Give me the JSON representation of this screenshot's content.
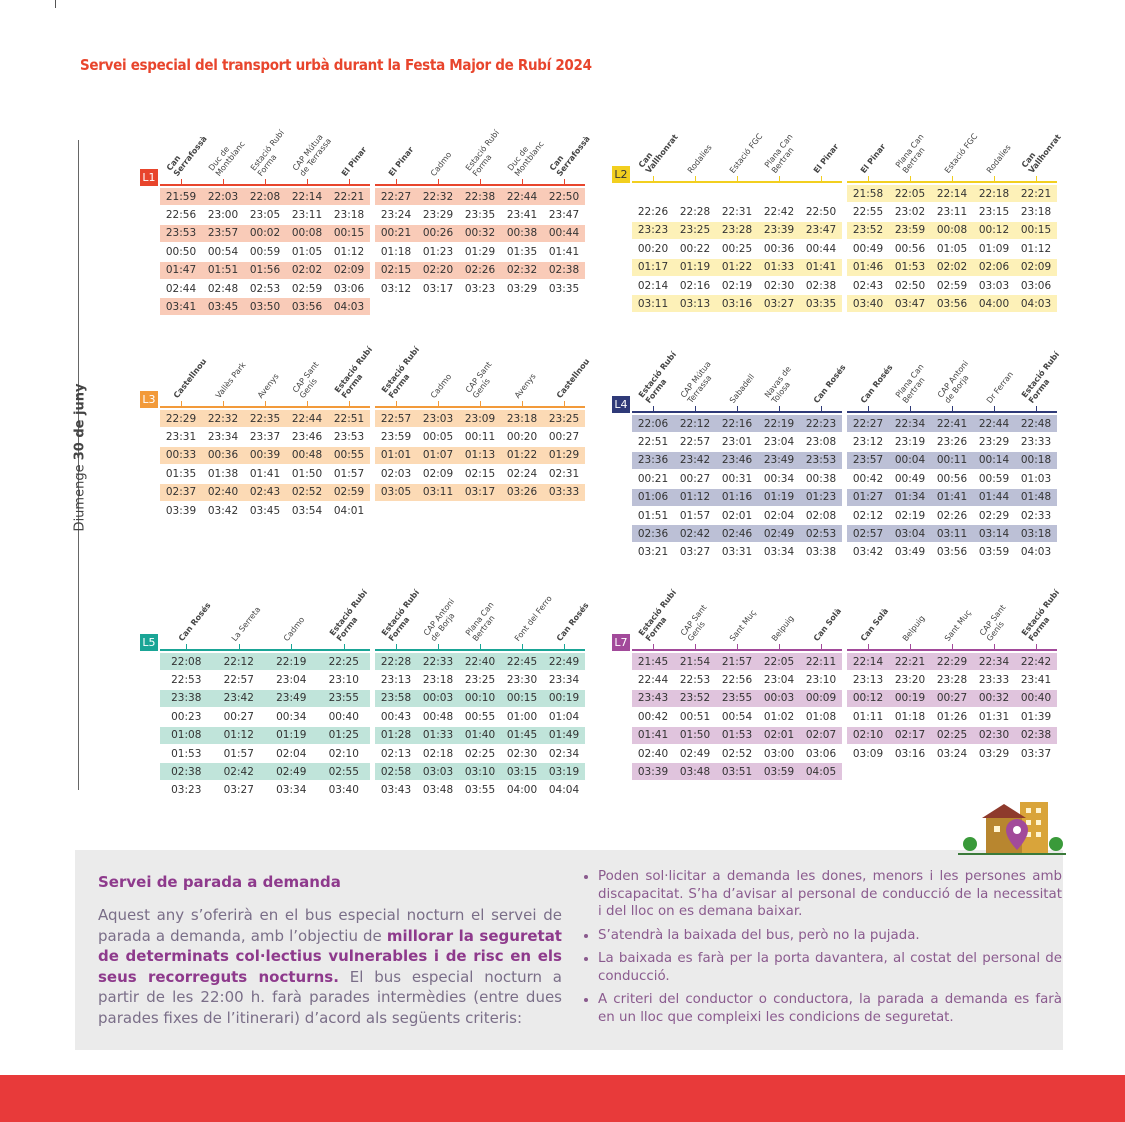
{
  "title": "Servei especial del transport urbà durant la Festa Major de Rubí 2024",
  "side_label": {
    "day": "Diumenge",
    "date": "30 de juny"
  },
  "lines": [
    {
      "name": "L1",
      "color": "#e8452c",
      "tint": "#f9cbb8",
      "directions": [
        {
          "stops": [
            "Can Serrafossà",
            "Duc de Montblanc",
            "Estació Rubí Forma",
            "CAP Mútua de Terrassa",
            "El Pinar"
          ],
          "rows": [
            [
              "21:59",
              "22:03",
              "22:08",
              "22:14",
              "22:21"
            ],
            [
              "22:56",
              "23:00",
              "23:05",
              "23:11",
              "23:18"
            ],
            [
              "23:53",
              "23:57",
              "00:02",
              "00:08",
              "00:15"
            ],
            [
              "00:50",
              "00:54",
              "00:59",
              "01:05",
              "01:12"
            ],
            [
              "01:47",
              "01:51",
              "01:56",
              "02:02",
              "02:09"
            ],
            [
              "02:44",
              "02:48",
              "02:53",
              "02:59",
              "03:06"
            ],
            [
              "03:41",
              "03:45",
              "03:50",
              "03:56",
              "04:03"
            ]
          ]
        },
        {
          "stops": [
            "El Pinar",
            "Cadmo",
            "Estació Rubí Forma",
            "Duc de Montblanc",
            "Can Serrafossà"
          ],
          "rows": [
            [
              "22:27",
              "22:32",
              "22:38",
              "22:44",
              "22:50"
            ],
            [
              "23:24",
              "23:29",
              "23:35",
              "23:41",
              "23:47"
            ],
            [
              "00:21",
              "00:26",
              "00:32",
              "00:38",
              "00:44"
            ],
            [
              "01:18",
              "01:23",
              "01:29",
              "01:35",
              "01:41"
            ],
            [
              "02:15",
              "02:20",
              "02:26",
              "02:32",
              "02:38"
            ],
            [
              "03:12",
              "03:17",
              "03:23",
              "03:29",
              "03:35"
            ]
          ]
        }
      ]
    },
    {
      "name": "L2",
      "color": "#f2cf1f",
      "tint": "#fdf1b8",
      "directions": [
        {
          "stops": [
            "Can Vallhonrat",
            "Rodalies",
            "Estació FGC",
            "Plana Can Bertran",
            "El Pinar"
          ],
          "rows": [
            [
              "22:26",
              "22:28",
              "22:31",
              "22:42",
              "22:50"
            ],
            [
              "23:23",
              "23:25",
              "23:28",
              "23:39",
              "23:47"
            ],
            [
              "00:20",
              "00:22",
              "00:25",
              "00:36",
              "00:44"
            ],
            [
              "01:17",
              "01:19",
              "01:22",
              "01:33",
              "01:41"
            ],
            [
              "02:14",
              "02:16",
              "02:19",
              "02:30",
              "02:38"
            ],
            [
              "03:11",
              "03:13",
              "03:16",
              "03:27",
              "03:35"
            ]
          ]
        },
        {
          "stops": [
            "El Pinar",
            "Plana Can Bertran",
            "Estació FGC",
            "Rodalies",
            "Can Vallhonrat"
          ],
          "rows": [
            [
              "21:58",
              "22:05",
              "22:14",
              "22:18",
              "22:21"
            ],
            [
              "22:55",
              "23:02",
              "23:11",
              "23:15",
              "23:18"
            ],
            [
              "23:52",
              "23:59",
              "00:08",
              "00:12",
              "00:15"
            ],
            [
              "00:49",
              "00:56",
              "01:05",
              "01:09",
              "01:12"
            ],
            [
              "01:46",
              "01:53",
              "02:02",
              "02:06",
              "02:09"
            ],
            [
              "02:43",
              "02:50",
              "02:59",
              "03:03",
              "03:06"
            ],
            [
              "03:40",
              "03:47",
              "03:56",
              "04:00",
              "04:03"
            ]
          ]
        }
      ]
    },
    {
      "name": "L3",
      "color": "#f29a3a",
      "tint": "#fcdab5",
      "directions": [
        {
          "stops": [
            "Castellnou",
            "Vallès Park",
            "Avenys",
            "CAP Sant Genís",
            "Estació Rubí Forma"
          ],
          "rows": [
            [
              "22:29",
              "22:32",
              "22:35",
              "22:44",
              "22:51"
            ],
            [
              "23:31",
              "23:34",
              "23:37",
              "23:46",
              "23:53"
            ],
            [
              "00:33",
              "00:36",
              "00:39",
              "00:48",
              "00:55"
            ],
            [
              "01:35",
              "01:38",
              "01:41",
              "01:50",
              "01:57"
            ],
            [
              "02:37",
              "02:40",
              "02:43",
              "02:52",
              "02:59"
            ],
            [
              "03:39",
              "03:42",
              "03:45",
              "03:54",
              "04:01"
            ]
          ]
        },
        {
          "stops": [
            "Estació Rubí Forma",
            "Cadmo",
            "CAP Sant Genís",
            "Avenys",
            "Castellnou"
          ],
          "rows": [
            [
              "22:57",
              "23:03",
              "23:09",
              "23:18",
              "23:25"
            ],
            [
              "23:59",
              "00:05",
              "00:11",
              "00:20",
              "00:27"
            ],
            [
              "01:01",
              "01:07",
              "01:13",
              "01:22",
              "01:29"
            ],
            [
              "02:03",
              "02:09",
              "02:15",
              "02:24",
              "02:31"
            ],
            [
              "03:05",
              "03:11",
              "03:17",
              "03:26",
              "03:33"
            ]
          ]
        }
      ]
    },
    {
      "name": "L4",
      "color": "#2f3a78",
      "tint": "#bcc0d6",
      "directions": [
        {
          "stops": [
            "Estació Rubí Forma",
            "CAP Mútua Terrassa",
            "Sabadell",
            "Navas de Tolosa",
            "Can Rosés"
          ],
          "rows": [
            [
              "22:06",
              "22:12",
              "22:16",
              "22:19",
              "22:23"
            ],
            [
              "22:51",
              "22:57",
              "23:01",
              "23:04",
              "23:08"
            ],
            [
              "23:36",
              "23:42",
              "23:46",
              "23:49",
              "23:53"
            ],
            [
              "00:21",
              "00:27",
              "00:31",
              "00:34",
              "00:38"
            ],
            [
              "01:06",
              "01:12",
              "01:16",
              "01:19",
              "01:23"
            ],
            [
              "01:51",
              "01:57",
              "02:01",
              "02:04",
              "02:08"
            ],
            [
              "02:36",
              "02:42",
              "02:46",
              "02:49",
              "02:53"
            ],
            [
              "03:21",
              "03:27",
              "03:31",
              "03:34",
              "03:38"
            ]
          ]
        },
        {
          "stops": [
            "Can Rosés",
            "Plana Can Bertran",
            "CAP Antoni de Borja",
            "Dr Ferran",
            "Estació Rubí Forma"
          ],
          "rows": [
            [
              "22:27",
              "22:34",
              "22:41",
              "22:44",
              "22:48"
            ],
            [
              "23:12",
              "23:19",
              "23:26",
              "23:29",
              "23:33"
            ],
            [
              "23:57",
              "00:04",
              "00:11",
              "00:14",
              "00:18"
            ],
            [
              "00:42",
              "00:49",
              "00:56",
              "00:59",
              "01:03"
            ],
            [
              "01:27",
              "01:34",
              "01:41",
              "01:44",
              "01:48"
            ],
            [
              "02:12",
              "02:19",
              "02:26",
              "02:29",
              "02:33"
            ],
            [
              "02:57",
              "03:04",
              "03:11",
              "03:14",
              "03:18"
            ],
            [
              "03:42",
              "03:49",
              "03:56",
              "03:59",
              "04:03"
            ]
          ]
        }
      ]
    },
    {
      "name": "L5",
      "color": "#1aa596",
      "tint": "#c0e4da",
      "directions": [
        {
          "stops": [
            "Can Rosés",
            "La Serreta",
            "Cadmo",
            "Estació Rubí Forma"
          ],
          "rows": [
            [
              "22:08",
              "22:12",
              "22:19",
              "22:25"
            ],
            [
              "22:53",
              "22:57",
              "23:04",
              "23:10"
            ],
            [
              "23:38",
              "23:42",
              "23:49",
              "23:55"
            ],
            [
              "00:23",
              "00:27",
              "00:34",
              "00:40"
            ],
            [
              "01:08",
              "01:12",
              "01:19",
              "01:25"
            ],
            [
              "01:53",
              "01:57",
              "02:04",
              "02:10"
            ],
            [
              "02:38",
              "02:42",
              "02:49",
              "02:55"
            ],
            [
              "03:23",
              "03:27",
              "03:34",
              "03:40"
            ]
          ]
        },
        {
          "stops": [
            "Estació Rubí Forma",
            "CAP Antoni de Borja",
            "Plana Can Bertran",
            "Font del Ferro",
            "Can Rosés"
          ],
          "rows": [
            [
              "22:28",
              "22:33",
              "22:40",
              "22:45",
              "22:49"
            ],
            [
              "23:13",
              "23:18",
              "23:25",
              "23:30",
              "23:34"
            ],
            [
              "23:58",
              "00:03",
              "00:10",
              "00:15",
              "00:19"
            ],
            [
              "00:43",
              "00:48",
              "00:55",
              "01:00",
              "01:04"
            ],
            [
              "01:28",
              "01:33",
              "01:40",
              "01:45",
              "01:49"
            ],
            [
              "02:13",
              "02:18",
              "02:25",
              "02:30",
              "02:34"
            ],
            [
              "02:58",
              "03:03",
              "03:10",
              "03:15",
              "03:19"
            ],
            [
              "03:43",
              "03:48",
              "03:55",
              "04:00",
              "04:04"
            ]
          ]
        }
      ]
    },
    {
      "name": "L7",
      "color": "#a24a9a",
      "tint": "#e0c4dd",
      "directions": [
        {
          "stops": [
            "Estació Rubí Forma",
            "CAP Sant Genís",
            "Sant Muç",
            "Belpuig",
            "Can Solà"
          ],
          "rows": [
            [
              "21:45",
              "21:54",
              "21:57",
              "22:05",
              "22:11"
            ],
            [
              "22:44",
              "22:53",
              "22:56",
              "23:04",
              "23:10"
            ],
            [
              "23:43",
              "23:52",
              "23:55",
              "00:03",
              "00:09"
            ],
            [
              "00:42",
              "00:51",
              "00:54",
              "01:02",
              "01:08"
            ],
            [
              "01:41",
              "01:50",
              "01:53",
              "02:01",
              "02:07"
            ],
            [
              "02:40",
              "02:49",
              "02:52",
              "03:00",
              "03:06"
            ],
            [
              "03:39",
              "03:48",
              "03:51",
              "03:59",
              "04:05"
            ]
          ]
        },
        {
          "stops": [
            "Can Solà",
            "Belpuig",
            "Sant Muç",
            "CAP Sant Genís",
            "Estació Rubí Forma"
          ],
          "rows": [
            [
              "22:14",
              "22:21",
              "22:29",
              "22:34",
              "22:42"
            ],
            [
              "23:13",
              "23:20",
              "23:28",
              "23:33",
              "23:41"
            ],
            [
              "00:12",
              "00:19",
              "00:27",
              "00:32",
              "00:40"
            ],
            [
              "01:11",
              "01:18",
              "01:26",
              "01:31",
              "01:39"
            ],
            [
              "02:10",
              "02:17",
              "02:25",
              "02:30",
              "02:38"
            ],
            [
              "03:09",
              "03:16",
              "03:24",
              "03:29",
              "03:37"
            ]
          ]
        }
      ]
    }
  ],
  "info": {
    "heading": "Servei de parada a demanda",
    "paragraph": [
      "Aquest any s’oferirà en el bus especial nocturn el servei de parada a demanda, amb l’objectiu de ",
      "millorar la seguretat de determinats col·lectius vulnerables i de risc en els seus recorreguts nocturns.",
      " El bus especial nocturn a partir de les 22:00 h. farà parades intermèdies (entre dues parades fixes de l’itinerari) d’acord als següents criteris:"
    ],
    "bullets": [
      "Poden sol·licitar a demanda les dones, menors i les persones amb discapacitat. S’ha d’avisar al personal de conducció de la necessitat i del lloc on es demana baixar.",
      "S’atendrà la baixada del bus, però no la pujada.",
      "La baixada es farà per la porta davantera, al costat del personal de conducció.",
      "A criteri del conductor o conductora, la parada a demanda es farà en un lloc que compleixi les condicions de seguretat."
    ]
  }
}
